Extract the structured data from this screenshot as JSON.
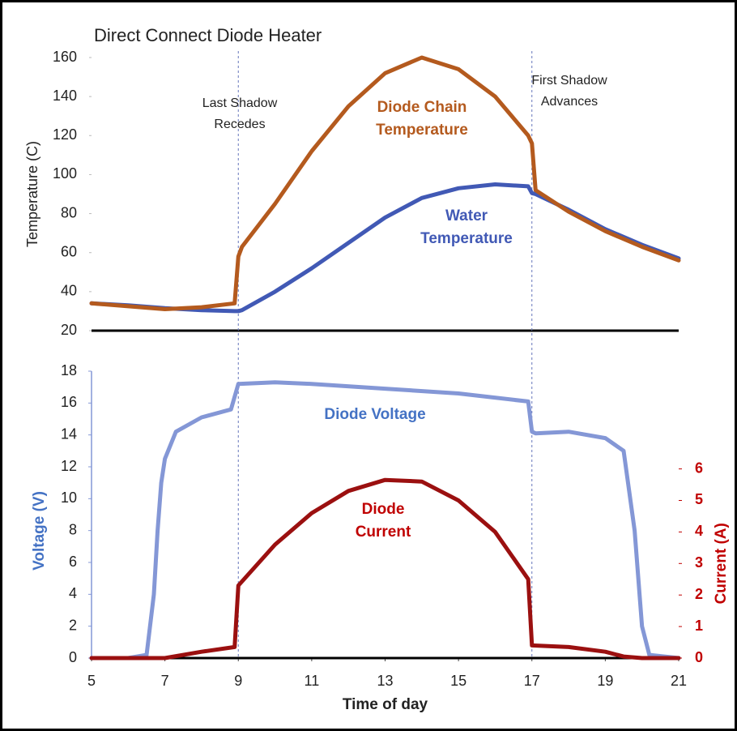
{
  "chart_data": [
    {
      "type": "line",
      "title": "Direct Connect Diode Heater",
      "ylabel": "Temperature (C)",
      "ylim": [
        20,
        160
      ],
      "yticks": [
        20,
        40,
        60,
        80,
        100,
        120,
        140,
        160
      ],
      "xlim": [
        5,
        21
      ],
      "markers": [
        9,
        17
      ],
      "annotations": [
        "Last Shadow Recedes",
        "First Shadow Advances"
      ],
      "series": [
        {
          "name": "Water Temperature",
          "color": "#4159b5",
          "x": [
            5,
            6,
            7,
            8,
            8.9,
            9,
            9.1,
            10,
            11,
            12,
            13,
            14,
            15,
            16,
            16.9,
            17,
            17.1,
            18,
            19,
            20,
            21
          ],
          "values": [
            34,
            33,
            31.5,
            30.5,
            30,
            30,
            30.5,
            40,
            52,
            65,
            78,
            88,
            93,
            95,
            94,
            90.5,
            90,
            82,
            72,
            64,
            57
          ]
        },
        {
          "name": "Diode Chain Temperature",
          "color": "#b45a1e",
          "x": [
            5,
            6,
            7,
            8,
            8.9,
            9,
            9.1,
            10,
            11,
            12,
            13,
            14,
            15,
            16,
            16.9,
            17,
            17.1,
            18,
            19,
            20,
            21
          ],
          "values": [
            34,
            32.5,
            31,
            32,
            34,
            58,
            63,
            85,
            112,
            135,
            152,
            160,
            154,
            140,
            120,
            116,
            92,
            81,
            71,
            63,
            56
          ]
        }
      ]
    },
    {
      "type": "line",
      "xlabel": "Time of day",
      "ylabel": "Voltage (V)",
      "y2label": "Current (A)",
      "xlim": [
        5,
        21
      ],
      "xticks": [
        5,
        7,
        9,
        11,
        13,
        15,
        17,
        19,
        21
      ],
      "ylim": [
        0,
        18
      ],
      "yticks": [
        0,
        2,
        4,
        6,
        8,
        10,
        12,
        14,
        16,
        18
      ],
      "y2lim": [
        0,
        9.1
      ],
      "y2ticks": [
        0,
        1,
        2,
        3,
        4,
        5,
        6
      ],
      "series": [
        {
          "name": "Diode Voltage",
          "color": "#8497d6",
          "x": [
            5,
            6,
            6.5,
            6.7,
            6.8,
            6.9,
            7,
            7.3,
            8,
            8.8,
            9,
            10,
            11,
            13,
            15,
            16.9,
            17,
            17.1,
            18,
            19,
            19.5,
            19.8,
            20,
            20.2,
            21
          ],
          "values": [
            0,
            0,
            0.2,
            4,
            8,
            11,
            12.5,
            14.2,
            15.1,
            15.6,
            17.2,
            17.3,
            17.2,
            16.9,
            16.6,
            16.1,
            14.2,
            14.1,
            14.2,
            13.8,
            13,
            8,
            2,
            0.2,
            0
          ]
        },
        {
          "name": "Diode Current",
          "color": "#9b1010",
          "axis": "y2",
          "x": [
            5,
            7,
            8,
            8.9,
            9,
            10,
            11,
            12,
            13,
            14,
            15,
            16,
            16.9,
            17,
            18,
            19,
            19.5,
            20,
            21
          ],
          "values": [
            0,
            0,
            0.2,
            0.35,
            2.3,
            3.6,
            4.6,
            5.3,
            5.65,
            5.6,
            5.0,
            4.0,
            2.5,
            0.4,
            0.35,
            0.2,
            0.05,
            0,
            0
          ]
        }
      ]
    }
  ]
}
